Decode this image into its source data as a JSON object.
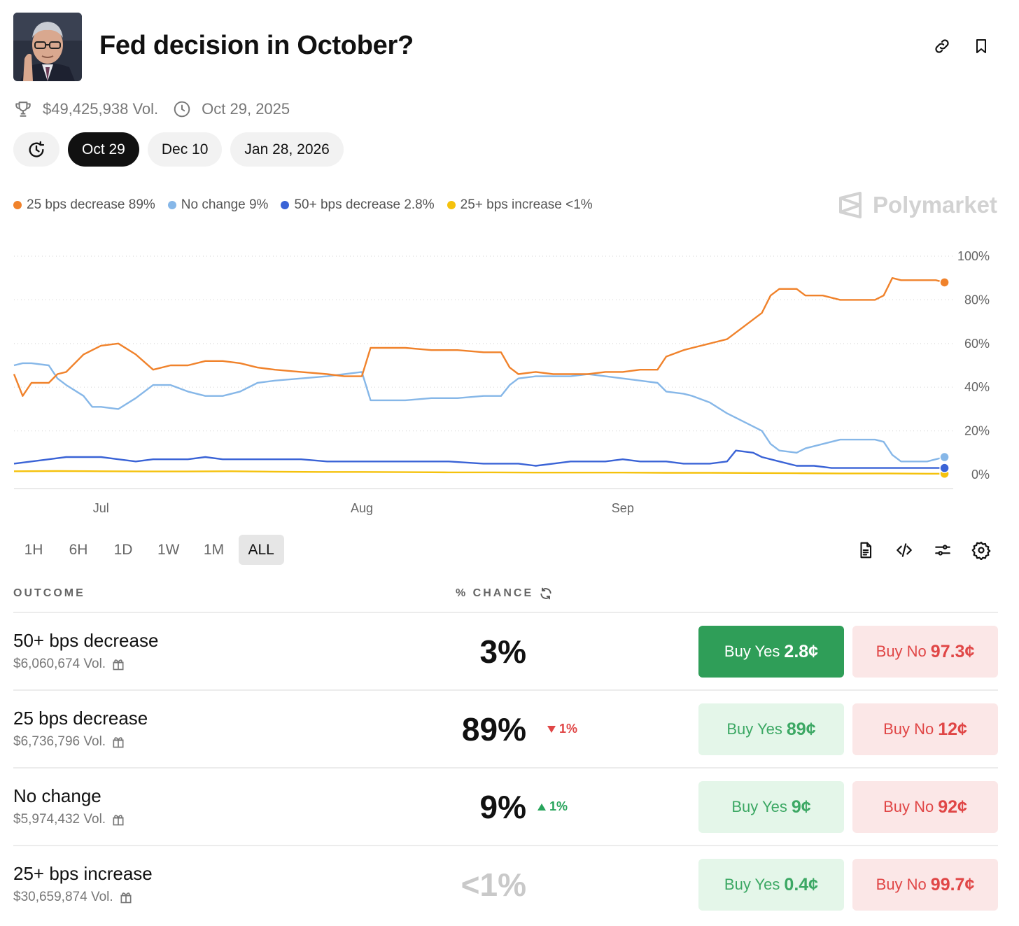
{
  "header": {
    "title": "Fed decision in October?",
    "avatar_alt": "Fed chair portrait"
  },
  "meta": {
    "volume": "$49,425,938 Vol.",
    "end_date": "Oct 29, 2025"
  },
  "date_tabs": [
    "Oct 29",
    "Dec 10",
    "Jan 28, 2026"
  ],
  "legend": [
    {
      "label": "25 bps decrease 89%",
      "color": "#f0822b"
    },
    {
      "label": "No change 9%",
      "color": "#86b7e8"
    },
    {
      "label": "50+ bps decrease 2.8%",
      "color": "#3a63d6"
    },
    {
      "label": "25+ bps increase <1%",
      "color": "#f5c20d"
    }
  ],
  "watermark": "Polymarket",
  "chart_data": {
    "type": "line",
    "title": "",
    "xlabel": "",
    "ylabel": "",
    "ylim": [
      0,
      100
    ],
    "y_ticks": [
      "100%",
      "80%",
      "60%",
      "40%",
      "20%",
      "0%"
    ],
    "x_ticks": [
      "Jul",
      "Aug",
      "Sep"
    ],
    "x_range_days": [
      0,
      108
    ],
    "x_tick_days": [
      10,
      40,
      70
    ],
    "series": [
      {
        "name": "25 bps decrease",
        "color": "#f0822b",
        "x": [
          0,
          1,
          2,
          4,
          5,
          6,
          8,
          9,
          10,
          12,
          14,
          16,
          18,
          20,
          22,
          24,
          26,
          28,
          30,
          33,
          36,
          38,
          40,
          41,
          43,
          45,
          48,
          51,
          54,
          56,
          57,
          58,
          60,
          62,
          64,
          66,
          68,
          70,
          72,
          74,
          75,
          77,
          78,
          80,
          82,
          84,
          86,
          87,
          88,
          90,
          91,
          93,
          95,
          97,
          99,
          100,
          101,
          102,
          104,
          105,
          106,
          107
        ],
        "y": [
          46,
          36,
          42,
          42,
          46,
          47,
          55,
          57,
          59,
          60,
          55,
          48,
          50,
          50,
          52,
          52,
          51,
          49,
          48,
          47,
          46,
          45,
          45,
          58,
          58,
          58,
          57,
          57,
          56,
          56,
          49,
          46,
          47,
          46,
          46,
          46,
          47,
          47,
          48,
          48,
          54,
          57,
          58,
          60,
          62,
          68,
          74,
          82,
          85,
          85,
          82,
          82,
          80,
          80,
          80,
          82,
          90,
          89,
          89,
          89,
          89,
          88
        ]
      },
      {
        "name": "No change",
        "color": "#86b7e8",
        "x": [
          0,
          1,
          2,
          4,
          5,
          6,
          8,
          9,
          10,
          12,
          14,
          16,
          18,
          20,
          22,
          24,
          26,
          28,
          30,
          33,
          36,
          38,
          40,
          41,
          43,
          45,
          48,
          51,
          54,
          56,
          57,
          58,
          60,
          62,
          64,
          66,
          68,
          70,
          72,
          74,
          75,
          77,
          78,
          80,
          82,
          84,
          86,
          87,
          88,
          90,
          91,
          93,
          95,
          97,
          99,
          100,
          101,
          102,
          104,
          105,
          106,
          107
        ],
        "y": [
          50,
          51,
          51,
          50,
          44,
          41,
          36,
          31,
          31,
          30,
          35,
          41,
          41,
          38,
          36,
          36,
          38,
          42,
          43,
          44,
          45,
          46,
          47,
          34,
          34,
          34,
          35,
          35,
          36,
          36,
          41,
          44,
          45,
          45,
          45,
          46,
          45,
          44,
          43,
          42,
          38,
          37,
          36,
          33,
          28,
          24,
          20,
          14,
          11,
          10,
          12,
          14,
          16,
          16,
          16,
          15,
          9,
          6,
          6,
          6,
          7,
          8
        ]
      },
      {
        "name": "50+ bps decrease",
        "color": "#3a63d6",
        "x": [
          0,
          2,
          4,
          6,
          8,
          10,
          12,
          14,
          16,
          18,
          20,
          22,
          24,
          26,
          28,
          30,
          33,
          36,
          38,
          40,
          43,
          46,
          50,
          54,
          58,
          60,
          62,
          64,
          66,
          68,
          70,
          72,
          74,
          75,
          77,
          78,
          80,
          82,
          83,
          85,
          86,
          88,
          90,
          92,
          94,
          96,
          98,
          100,
          102,
          104,
          106,
          107
        ],
        "y": [
          5,
          6,
          7,
          8,
          8,
          8,
          7,
          6,
          7,
          7,
          7,
          8,
          7,
          7,
          7,
          7,
          7,
          6,
          6,
          6,
          6,
          6,
          6,
          5,
          5,
          4,
          5,
          6,
          6,
          6,
          7,
          6,
          6,
          6,
          5,
          5,
          5,
          6,
          11,
          10,
          8,
          6,
          4,
          4,
          3,
          3,
          3,
          3,
          3,
          3,
          3,
          3
        ]
      },
      {
        "name": "25+ bps increase",
        "color": "#f5c20d",
        "x": [
          0,
          5,
          10,
          15,
          20,
          25,
          30,
          35,
          40,
          45,
          50,
          55,
          60,
          65,
          70,
          75,
          80,
          85,
          90,
          95,
          100,
          105,
          107
        ],
        "y": [
          1.5,
          1.6,
          1.5,
          1.4,
          1.4,
          1.5,
          1.3,
          1.2,
          1.2,
          1.1,
          1.0,
          1.0,
          0.9,
          0.9,
          0.9,
          0.8,
          0.8,
          0.7,
          0.6,
          0.5,
          0.5,
          0.4,
          0.4
        ]
      }
    ]
  },
  "ranges": [
    "1H",
    "6H",
    "1D",
    "1W",
    "1M",
    "ALL"
  ],
  "table": {
    "col_outcome": "OUTCOME",
    "col_chance": "% CHANCE",
    "rows": [
      {
        "name": "50+ bps decrease",
        "vol": "$6,060,674 Vol.",
        "chance": "3%",
        "delta": "",
        "yes_label": "Buy Yes",
        "yes_price": "2.8¢",
        "no_label": "Buy No",
        "no_price": "97.3¢"
      },
      {
        "name": "25 bps decrease",
        "vol": "$6,736,796 Vol.",
        "chance": "89%",
        "delta": "1%",
        "yes_label": "Buy Yes",
        "yes_price": "89¢",
        "no_label": "Buy No",
        "no_price": "12¢"
      },
      {
        "name": "No change",
        "vol": "$5,974,432 Vol.",
        "chance": "9%",
        "delta": "1%",
        "yes_label": "Buy Yes",
        "yes_price": "9¢",
        "no_label": "Buy No",
        "no_price": "92¢"
      },
      {
        "name": "25+ bps increase",
        "vol": "$30,659,874 Vol.",
        "chance": "<1%",
        "delta": "",
        "yes_label": "Buy Yes",
        "yes_price": "0.4¢",
        "no_label": "Buy No",
        "no_price": "99.7¢"
      }
    ]
  }
}
